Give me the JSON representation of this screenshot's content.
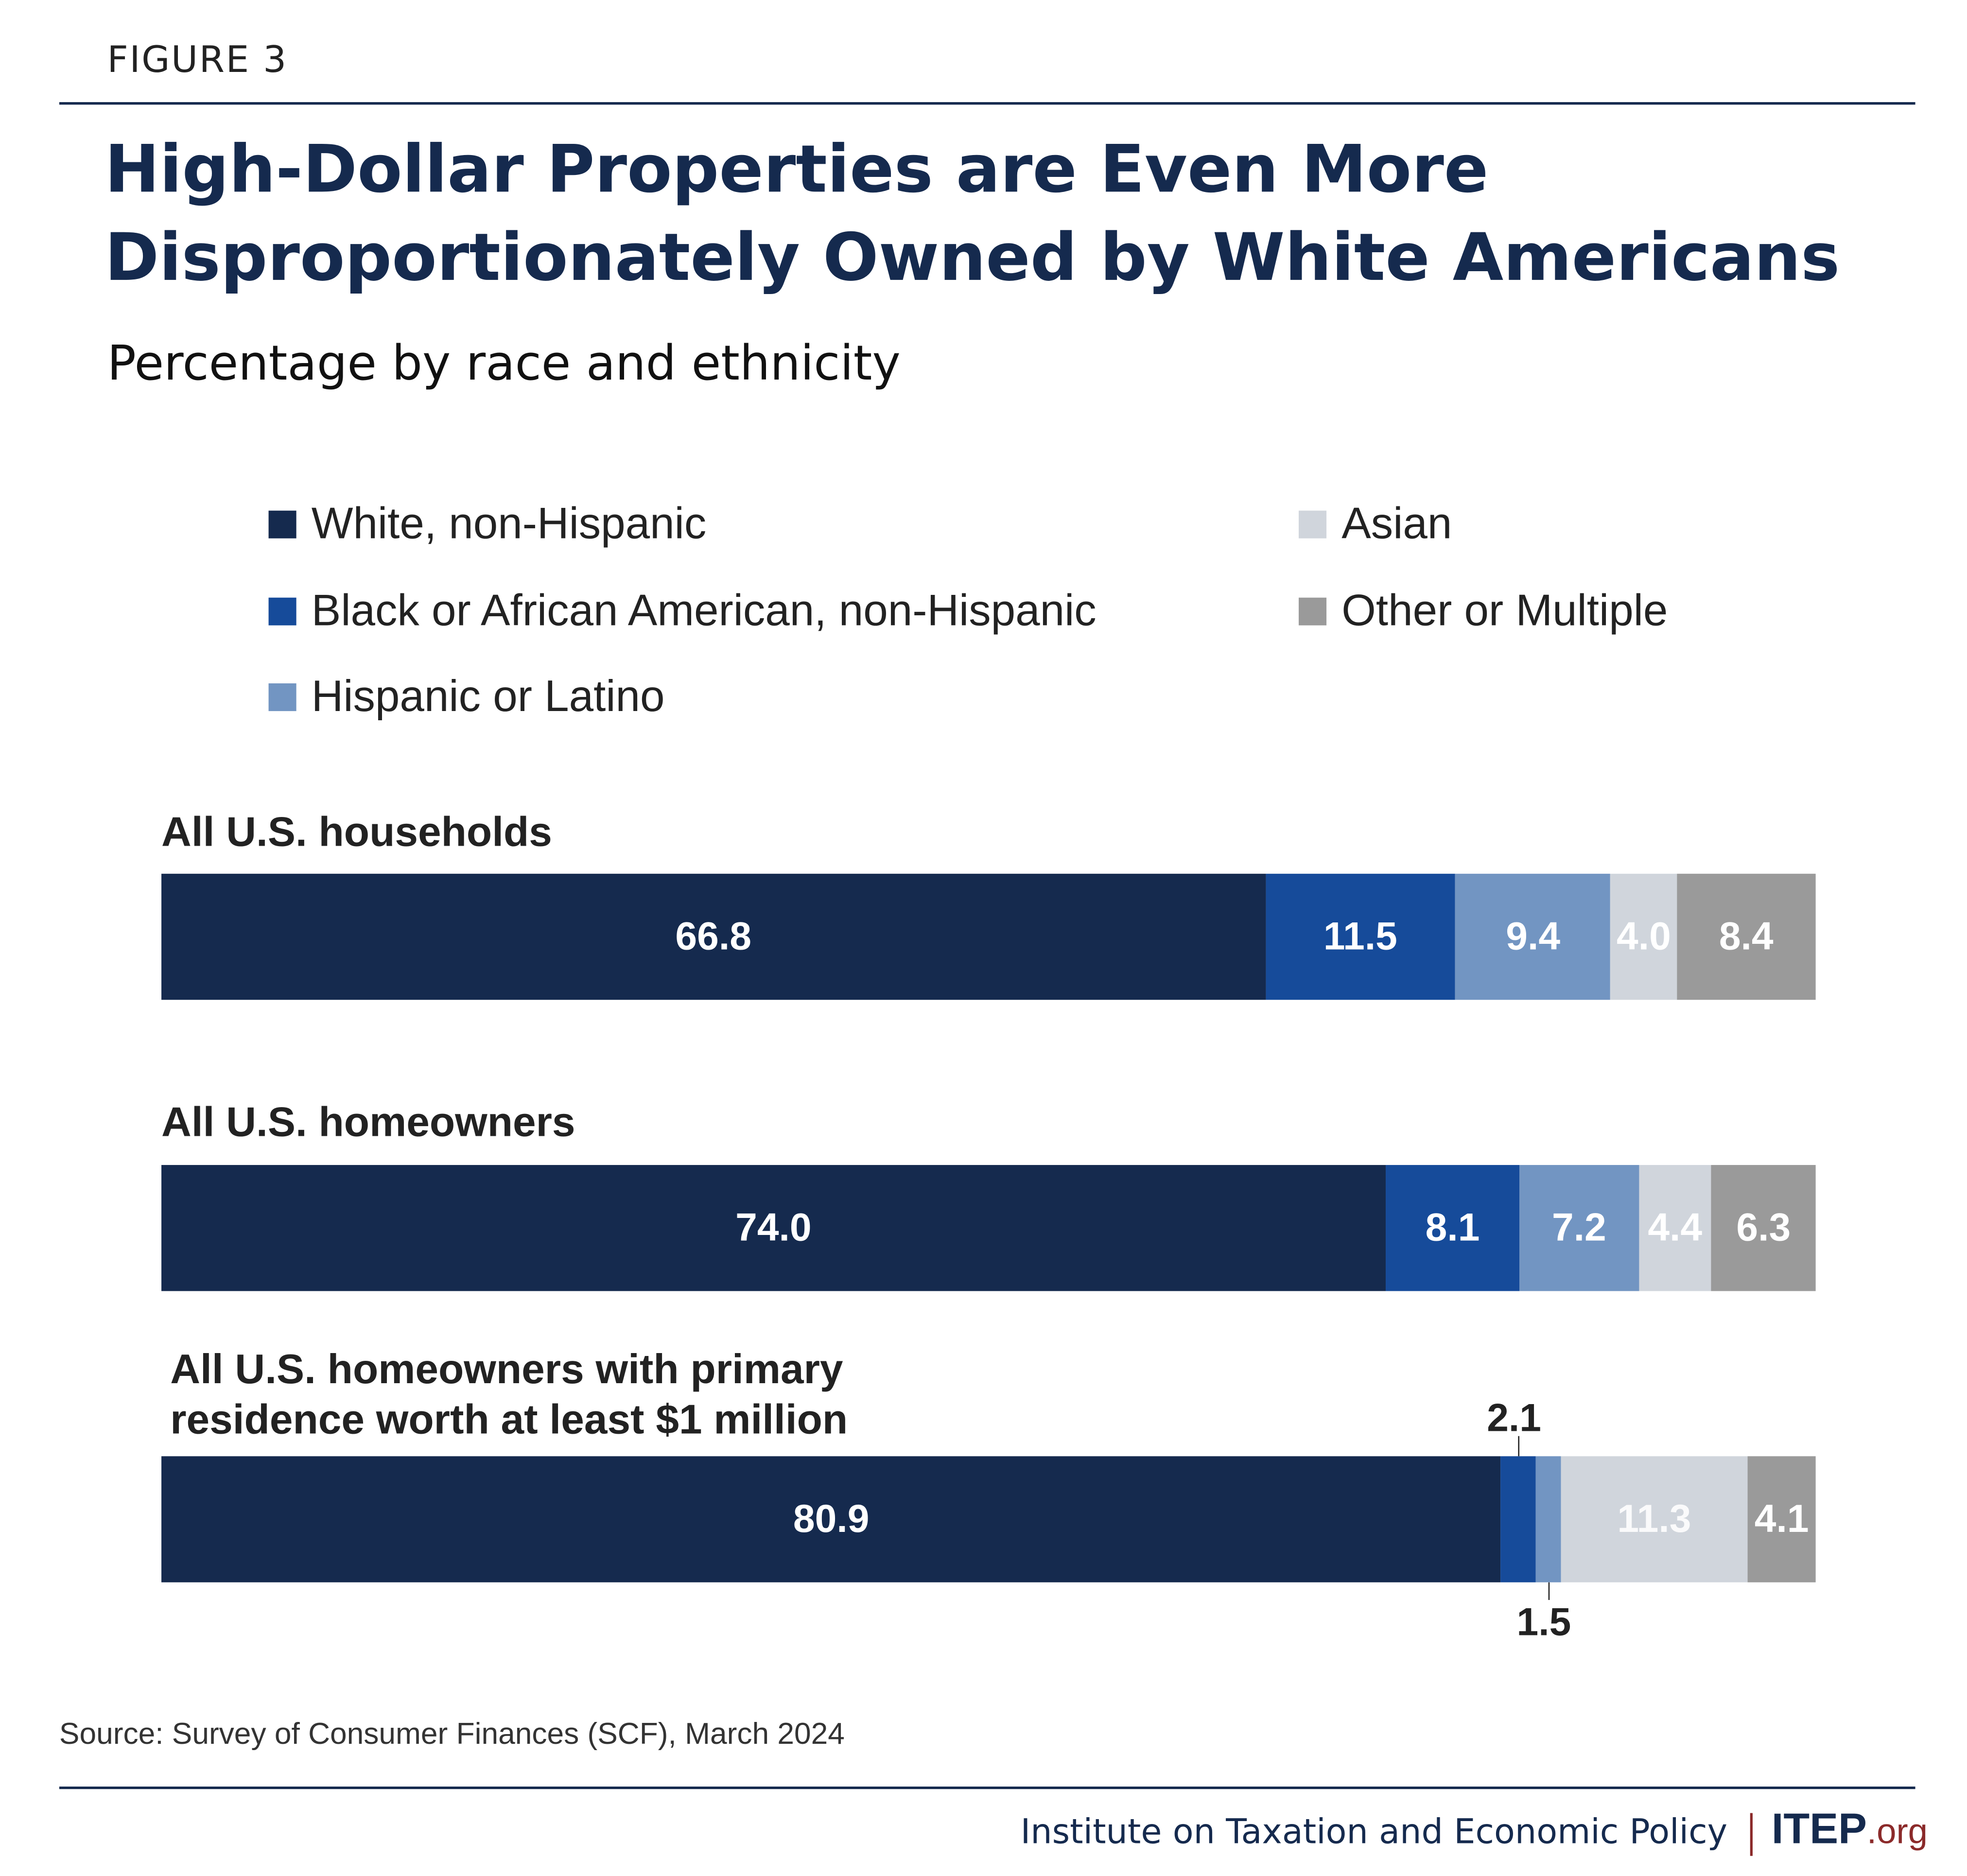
{
  "figure_label": "FIGURE 3",
  "chart_data": {
    "type": "bar",
    "stacked": true,
    "orientation": "horizontal",
    "title": "High-Dollar Properties are Even More Disproportionately Owned by White Americans",
    "subtitle": "Percentage by race and ethnicity",
    "categories": [
      "All U.S. households",
      "All U.S. homeowners",
      "All U.S. homeowners with primary residence worth at least $1 million"
    ],
    "series": [
      {
        "name": "White, non-Hispanic",
        "color": "#152a4e",
        "values": [
          66.8,
          74.0,
          80.9
        ]
      },
      {
        "name": "Black or African American, non-Hispanic",
        "color": "#164b9a",
        "values": [
          11.5,
          8.1,
          2.1
        ]
      },
      {
        "name": "Hispanic or Latino",
        "color": "#7295c2",
        "values": [
          9.4,
          7.2,
          1.5
        ]
      },
      {
        "name": "Asian",
        "color": "#d0d5dc",
        "values": [
          4.0,
          4.4,
          11.3
        ]
      },
      {
        "name": "Other or Multiple",
        "color": "#9a9a9a",
        "values": [
          8.4,
          6.3,
          4.1
        ]
      }
    ],
    "value_labels": [
      [
        "66.8",
        "11.5",
        "9.4",
        "4.0",
        "8.4"
      ],
      [
        "74.0",
        "8.1",
        "7.2",
        "4.4",
        "6.3"
      ],
      [
        "80.9",
        "2.1",
        "1.5",
        "11.3",
        "4.1"
      ]
    ],
    "category_labels": [
      "All U.S. households",
      "All U.S. homeowners",
      "All U.S. homeowners with primary",
      "residence worth at least $1 million"
    ],
    "legend_position": "top",
    "xlim": [
      0,
      100
    ]
  },
  "source": "Source: Survey of Consumer Finances (SCF), March 2024",
  "footer": {
    "org": "Institute on Taxation and Economic Policy",
    "logo_main": "ITEP",
    "logo_suffix": ".org"
  }
}
